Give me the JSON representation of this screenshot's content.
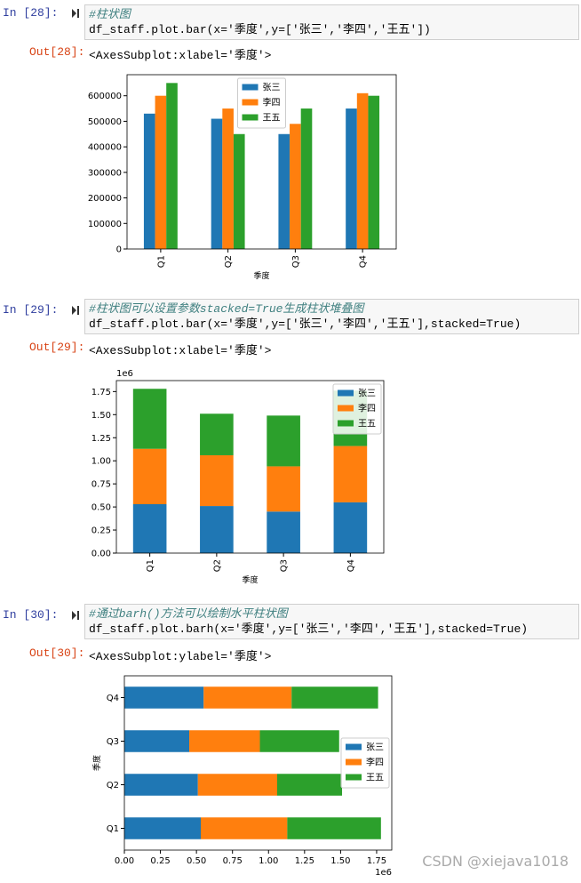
{
  "cells": [
    {
      "prompt_in": "In [28]:",
      "code": [
        "#柱状图",
        "df_staff.plot.bar(x='季度',y=['张三','李四','王五'])"
      ],
      "prompt_out": "Out[28]:",
      "output": "<AxesSubplot:xlabel='季度'>"
    },
    {
      "prompt_in": "In [29]:",
      "code": [
        "#柱状图可以设置参数stacked=True生成柱状堆叠图",
        "df_staff.plot.bar(x='季度',y=['张三','李四','王五'],stacked=True)"
      ],
      "prompt_out": "Out[29]:",
      "output": "<AxesSubplot:xlabel='季度'>"
    },
    {
      "prompt_in": "In [30]:",
      "code": [
        "#通过barh()方法可以绘制水平柱状图",
        "df_staff.plot.barh(x='季度',y=['张三','李四','王五'],stacked=True)"
      ],
      "prompt_out": "Out[30]:",
      "output": "<AxesSubplot:ylabel='季度'>"
    }
  ],
  "chart_data": [
    {
      "type": "bar",
      "stacked": false,
      "categories": [
        "Q1",
        "Q2",
        "Q3",
        "Q4"
      ],
      "xlabel": "季度",
      "series": [
        {
          "name": "张三",
          "color": "#1f77b4",
          "values": [
            530000,
            510000,
            450000,
            550000
          ]
        },
        {
          "name": "李四",
          "color": "#ff7f0e",
          "values": [
            600000,
            550000,
            490000,
            610000
          ]
        },
        {
          "name": "王五",
          "color": "#2ca02c",
          "values": [
            650000,
            450000,
            550000,
            600000
          ]
        }
      ],
      "ylim": [
        0,
        682500
      ],
      "yticks": [
        0,
        100000,
        200000,
        300000,
        400000,
        500000,
        600000
      ],
      "legend": "upper center"
    },
    {
      "type": "bar",
      "stacked": true,
      "categories": [
        "Q1",
        "Q2",
        "Q3",
        "Q4"
      ],
      "xlabel": "季度",
      "y_offset_label": "1e6",
      "series": [
        {
          "name": "张三",
          "color": "#1f77b4",
          "values": [
            0.53,
            0.51,
            0.45,
            0.55
          ]
        },
        {
          "name": "李四",
          "color": "#ff7f0e",
          "values": [
            0.6,
            0.55,
            0.49,
            0.61
          ]
        },
        {
          "name": "王五",
          "color": "#2ca02c",
          "values": [
            0.65,
            0.45,
            0.55,
            0.6
          ]
        }
      ],
      "ylim": [
        0,
        1.869
      ],
      "yticks": [
        {
          "value": 0,
          "label": "0.00"
        },
        0.25,
        {
          "value": 0.5,
          "label": "0.50"
        },
        0.75,
        {
          "value": 1,
          "label": "1.00"
        },
        1.25,
        {
          "value": 1.5,
          "label": "1.50"
        },
        1.75
      ],
      "legend": "upper right"
    },
    {
      "type": "barh",
      "stacked": true,
      "categories": [
        "Q1",
        "Q2",
        "Q3",
        "Q4"
      ],
      "ylabel": "季度",
      "x_offset_label": "1e6",
      "series": [
        {
          "name": "张三",
          "color": "#1f77b4",
          "values": [
            0.53,
            0.51,
            0.45,
            0.55
          ]
        },
        {
          "name": "李四",
          "color": "#ff7f0e",
          "values": [
            0.6,
            0.55,
            0.49,
            0.61
          ]
        },
        {
          "name": "王五",
          "color": "#2ca02c",
          "values": [
            0.65,
            0.45,
            0.55,
            0.6
          ]
        }
      ],
      "xlim": [
        0,
        1.855
      ],
      "xticks": [
        {
          "value": 0,
          "label": "0.00"
        },
        0.25,
        {
          "value": 0.5,
          "label": "0.50"
        },
        0.75,
        {
          "value": 1,
          "label": "1.00"
        },
        1.25,
        {
          "value": 1.5,
          "label": "1.50"
        },
        1.75
      ],
      "legend": "center right"
    }
  ],
  "watermark": "CSDN @xiejava1018"
}
